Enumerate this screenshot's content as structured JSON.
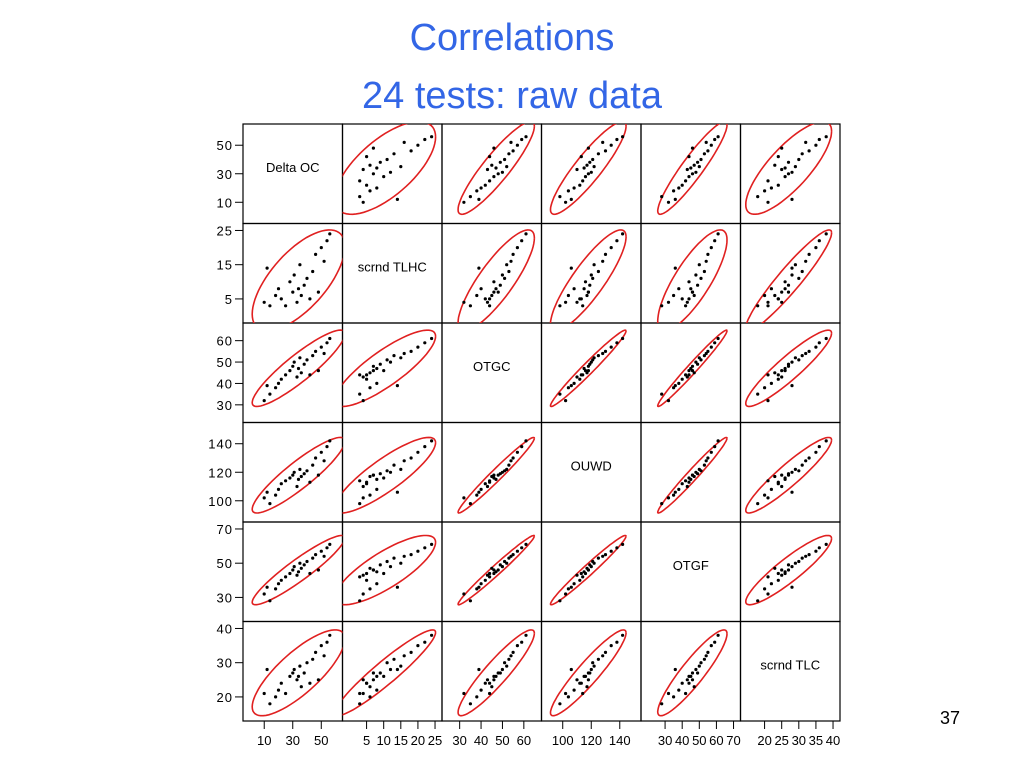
{
  "slide": {
    "title_line1": "Correlations",
    "title_line2": "24 tests: raw data",
    "page_number": "37"
  },
  "colors": {
    "title": "#3366e6",
    "ellipse": "#e02020",
    "point": "#000000",
    "frame": "#000000"
  },
  "chart_data": {
    "type": "scatter",
    "variables": [
      "Delta OC",
      "scrnd TLHC",
      "OTGC",
      "OUWD",
      "OTGF",
      "scrnd TLC"
    ],
    "axes": [
      {
        "name": "Delta OC",
        "range": [
          0,
          60
        ],
        "left_ticks": [
          {
            "v": 50,
            "label": "50"
          },
          {
            "v": 30,
            "label": "30"
          },
          {
            "v": 10,
            "label": "10"
          }
        ],
        "bottom_ticks": [
          {
            "v": 10,
            "label": "10"
          },
          {
            "v": 30,
            "label": "30"
          },
          {
            "v": 50,
            "label": "50"
          }
        ]
      },
      {
        "name": "scrnd TLHC",
        "range": [
          0,
          25
        ],
        "left_ticks": [
          {
            "v": 25,
            "label": "25"
          },
          {
            "v": 15,
            "label": "15"
          },
          {
            "v": 5,
            "label": "5"
          }
        ],
        "bottom_ticks": [
          {
            "v": 5,
            "label": "5"
          },
          {
            "v": 10,
            "label": "10"
          },
          {
            "v": 15,
            "label": "15"
          },
          {
            "v": 20,
            "label": "20"
          },
          {
            "v": 25,
            "label": "25"
          }
        ]
      },
      {
        "name": "OTGC",
        "range": [
          25,
          65
        ],
        "left_ticks": [
          {
            "v": 60,
            "label": "60"
          },
          {
            "v": 50,
            "label": "50"
          },
          {
            "v": 40,
            "label": "40"
          },
          {
            "v": 30,
            "label": "30"
          }
        ],
        "bottom_ticks": [
          {
            "v": 30,
            "label": "30"
          },
          {
            "v": 40,
            "label": "40"
          },
          {
            "v": 50,
            "label": "50"
          },
          {
            "v": 60,
            "label": "60"
          }
        ]
      },
      {
        "name": "OUWD",
        "range": [
          90,
          150
        ],
        "left_ticks": [
          {
            "v": 140,
            "label": "140"
          },
          {
            "v": 120,
            "label": "120"
          },
          {
            "v": 100,
            "label": "100"
          }
        ],
        "bottom_ticks": [
          {
            "v": 100,
            "label": "100"
          },
          {
            "v": 120,
            "label": "120"
          },
          {
            "v": 140,
            "label": "140"
          }
        ]
      },
      {
        "name": "OTGF",
        "range": [
          20,
          70
        ],
        "left_ticks": [
          {
            "v": 70,
            "label": "70"
          },
          {
            "v": 50,
            "label": "50"
          },
          {
            "v": 30,
            "label": "30"
          }
        ],
        "bottom_ticks": [
          {
            "v": 30,
            "label": "30"
          },
          {
            "v": 40,
            "label": "40"
          },
          {
            "v": 50,
            "label": "50"
          },
          {
            "v": 60,
            "label": "60"
          },
          {
            "v": 70,
            "label": "70"
          }
        ]
      },
      {
        "name": "scrnd TLC",
        "range": [
          15,
          40
        ],
        "left_ticks": [
          {
            "v": 40,
            "label": "40"
          },
          {
            "v": 30,
            "label": "30"
          },
          {
            "v": 20,
            "label": "20"
          }
        ],
        "bottom_ticks": [
          {
            "v": 20,
            "label": "20"
          },
          {
            "v": 25,
            "label": "25"
          },
          {
            "v": 30,
            "label": "30"
          },
          {
            "v": 35,
            "label": "35"
          },
          {
            "v": 40,
            "label": "40"
          }
        ]
      }
    ],
    "observations": [
      {
        "Delta OC": 10,
        "scrnd TLHC": 4,
        "OTGC": 32,
        "OUWD": 102,
        "OTGF": 32,
        "scrnd TLC": 21
      },
      {
        "Delta OC": 14,
        "scrnd TLHC": 3,
        "OTGC": 35,
        "OUWD": 98,
        "OTGF": 28,
        "scrnd TLC": 18
      },
      {
        "Delta OC": 18,
        "scrnd TLHC": 6,
        "OTGC": 38,
        "OUWD": 104,
        "OTGF": 35,
        "scrnd TLC": 20
      },
      {
        "Delta OC": 20,
        "scrnd TLHC": 8,
        "OTGC": 40,
        "OUWD": 108,
        "OTGF": 38,
        "scrnd TLC": 22
      },
      {
        "Delta OC": 22,
        "scrnd TLHC": 5,
        "OTGC": 42,
        "OUWD": 112,
        "OTGF": 40,
        "scrnd TLC": 24
      },
      {
        "Delta OC": 25,
        "scrnd TLHC": 3,
        "OTGC": 44,
        "OUWD": 114,
        "OTGF": 42,
        "scrnd TLC": 21
      },
      {
        "Delta OC": 28,
        "scrnd TLHC": 10,
        "OTGC": 46,
        "OUWD": 116,
        "OTGF": 44,
        "scrnd TLC": 26
      },
      {
        "Delta OC": 30,
        "scrnd TLHC": 7,
        "OTGC": 48,
        "OUWD": 118,
        "OTGF": 46,
        "scrnd TLC": 27
      },
      {
        "Delta OC": 31,
        "scrnd TLHC": 12,
        "OTGC": 50,
        "OUWD": 120,
        "OTGF": 48,
        "scrnd TLC": 28
      },
      {
        "Delta OC": 33,
        "scrnd TLHC": 4,
        "OTGC": 43,
        "OUWD": 110,
        "OTGF": 43,
        "scrnd TLC": 25
      },
      {
        "Delta OC": 34,
        "scrnd TLHC": 8,
        "OTGC": 47,
        "OUWD": 115,
        "OTGF": 45,
        "scrnd TLC": 26
      },
      {
        "Delta OC": 35,
        "scrnd TLHC": 15,
        "OTGC": 52,
        "OUWD": 122,
        "OTGF": 50,
        "scrnd TLC": 29
      },
      {
        "Delta OC": 36,
        "scrnd TLHC": 6,
        "OTGC": 45,
        "OUWD": 117,
        "OTGF": 47,
        "scrnd TLC": 23
      },
      {
        "Delta OC": 38,
        "scrnd TLHC": 9,
        "OTGC": 49,
        "OUWD": 119,
        "OTGF": 49,
        "scrnd TLC": 27
      },
      {
        "Delta OC": 40,
        "scrnd TLHC": 11,
        "OTGC": 51,
        "OUWD": 121,
        "OTGF": 51,
        "scrnd TLC": 30
      },
      {
        "Delta OC": 42,
        "scrnd TLHC": 5,
        "OTGC": 44,
        "OUWD": 113,
        "OTGF": 44,
        "scrnd TLC": 24
      },
      {
        "Delta OC": 44,
        "scrnd TLHC": 13,
        "OTGC": 53,
        "OUWD": 125,
        "OTGF": 53,
        "scrnd TLC": 31
      },
      {
        "Delta OC": 46,
        "scrnd TLHC": 18,
        "OTGC": 55,
        "OUWD": 130,
        "OTGF": 55,
        "scrnd TLC": 33
      },
      {
        "Delta OC": 48,
        "scrnd TLHC": 7,
        "OTGC": 46,
        "OUWD": 118,
        "OTGF": 46,
        "scrnd TLC": 25
      },
      {
        "Delta OC": 50,
        "scrnd TLHC": 20,
        "OTGC": 57,
        "OUWD": 134,
        "OTGF": 57,
        "scrnd TLC": 35
      },
      {
        "Delta OC": 52,
        "scrnd TLHC": 16,
        "OTGC": 54,
        "OUWD": 128,
        "OTGF": 54,
        "scrnd TLC": 32
      },
      {
        "Delta OC": 54,
        "scrnd TLHC": 22,
        "OTGC": 59,
        "OUWD": 138,
        "OTGF": 59,
        "scrnd TLC": 36
      },
      {
        "Delta OC": 12,
        "scrnd TLHC": 14,
        "OTGC": 39,
        "OUWD": 106,
        "OTGF": 36,
        "scrnd TLC": 28
      },
      {
        "Delta OC": 56,
        "scrnd TLHC": 24,
        "OTGC": 61,
        "OUWD": 142,
        "OTGF": 61,
        "scrnd TLC": 38
      }
    ],
    "grid": false,
    "legend": "none"
  }
}
